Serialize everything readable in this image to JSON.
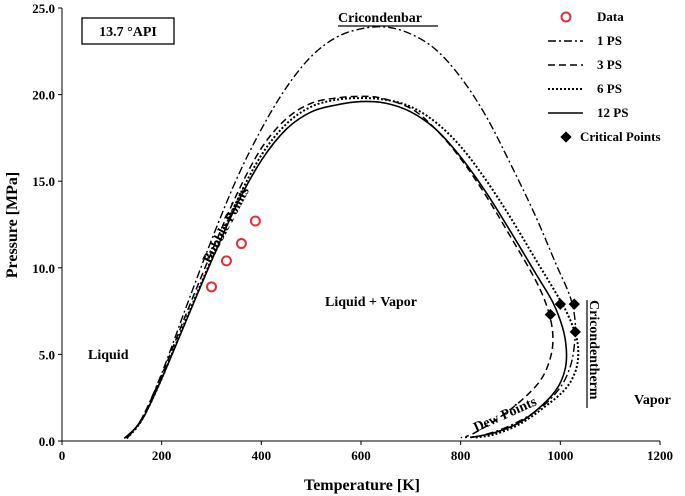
{
  "chart_data": {
    "type": "line",
    "api_label": "13.7 °API",
    "xlabel": "Temperature [K]",
    "ylabel": "Pressure [MPa]",
    "xlim": [
      0,
      1200
    ],
    "ylim": [
      0,
      25
    ],
    "x_ticks": [
      "0",
      "200",
      "400",
      "600",
      "800",
      "1000",
      "1200"
    ],
    "y_ticks": [
      "0.0",
      "5.0",
      "10.0",
      "15.0",
      "20.0",
      "25.0"
    ],
    "grid": false,
    "legend_position": "top-right",
    "region_labels": {
      "liquid": "Liquid",
      "two_phase": "Liquid + Vapor",
      "vapor": "Vapor"
    },
    "annotations": {
      "bubble": "Bubble Points",
      "dew": "Dew Points",
      "cricondenbar": "Cricondenbar",
      "cricondentherm": "Cricondentherm"
    },
    "series": [
      {
        "name": "Data",
        "style": "marker-circle",
        "color": "#e0303a",
        "points": [
          [
            300,
            8.9
          ],
          [
            330,
            10.4
          ],
          [
            360,
            11.4
          ],
          [
            388,
            12.7
          ]
        ]
      },
      {
        "name": "1 PS",
        "style": "dashdot",
        "color": "#000000",
        "points": [
          [
            130,
            0.15
          ],
          [
            160,
            1.3
          ],
          [
            200,
            3.9
          ],
          [
            250,
            7.8
          ],
          [
            300,
            11.6
          ],
          [
            350,
            15.1
          ],
          [
            400,
            18.0
          ],
          [
            450,
            20.4
          ],
          [
            500,
            22.2
          ],
          [
            550,
            23.3
          ],
          [
            600,
            23.8
          ],
          [
            650,
            23.9
          ],
          [
            700,
            23.5
          ],
          [
            750,
            22.6
          ],
          [
            800,
            21.0
          ],
          [
            850,
            18.8
          ],
          [
            900,
            16.0
          ],
          [
            950,
            13.0
          ],
          [
            990,
            10.3
          ],
          [
            1020,
            8.3
          ],
          [
            1030,
            6.8
          ],
          [
            1028,
            5.5
          ],
          [
            1020,
            4.3
          ],
          [
            1000,
            3.1
          ],
          [
            960,
            1.9
          ],
          [
            900,
            0.9
          ],
          [
            840,
            0.3
          ],
          [
            800,
            0.2
          ]
        ]
      },
      {
        "name": "3 PS",
        "style": "dashed",
        "color": "#000000",
        "points": [
          [
            130,
            0.15
          ],
          [
            160,
            1.3
          ],
          [
            200,
            3.8
          ],
          [
            250,
            7.4
          ],
          [
            300,
            10.9
          ],
          [
            350,
            14.2
          ],
          [
            400,
            16.9
          ],
          [
            450,
            18.6
          ],
          [
            500,
            19.5
          ],
          [
            550,
            19.8
          ],
          [
            600,
            19.9
          ],
          [
            640,
            19.8
          ],
          [
            700,
            19.2
          ],
          [
            750,
            18.0
          ],
          [
            800,
            16.3
          ],
          [
            850,
            14.2
          ],
          [
            900,
            11.8
          ],
          [
            950,
            9.3
          ],
          [
            975,
            7.6
          ],
          [
            985,
            6.1
          ],
          [
            980,
            4.8
          ],
          [
            960,
            3.5
          ],
          [
            920,
            2.3
          ],
          [
            870,
            1.2
          ],
          [
            830,
            0.5
          ],
          [
            810,
            0.25
          ]
        ]
      },
      {
        "name": "6 PS",
        "style": "dotted",
        "color": "#000000",
        "points": [
          [
            130,
            0.15
          ],
          [
            160,
            1.2
          ],
          [
            200,
            3.6
          ],
          [
            250,
            7.1
          ],
          [
            300,
            10.5
          ],
          [
            350,
            13.8
          ],
          [
            400,
            16.5
          ],
          [
            450,
            18.3
          ],
          [
            500,
            19.3
          ],
          [
            550,
            19.7
          ],
          [
            600,
            19.8
          ],
          [
            650,
            19.7
          ],
          [
            700,
            19.3
          ],
          [
            750,
            18.4
          ],
          [
            800,
            17.0
          ],
          [
            850,
            15.1
          ],
          [
            900,
            12.9
          ],
          [
            950,
            10.5
          ],
          [
            990,
            8.6
          ],
          [
            1015,
            7.3
          ],
          [
            1032,
            6.0
          ],
          [
            1036,
            5.0
          ],
          [
            1030,
            4.0
          ],
          [
            1010,
            3.0
          ],
          [
            970,
            2.0
          ],
          [
            920,
            1.0
          ],
          [
            870,
            0.4
          ],
          [
            830,
            0.2
          ]
        ]
      },
      {
        "name": "12 PS",
        "style": "solid",
        "color": "#000000",
        "points": [
          [
            125,
            0.15
          ],
          [
            160,
            1.2
          ],
          [
            200,
            3.6
          ],
          [
            250,
            7.0
          ],
          [
            300,
            10.4
          ],
          [
            350,
            13.6
          ],
          [
            400,
            16.2
          ],
          [
            450,
            18.0
          ],
          [
            500,
            19.0
          ],
          [
            550,
            19.4
          ],
          [
            600,
            19.6
          ],
          [
            650,
            19.5
          ],
          [
            700,
            19.0
          ],
          [
            750,
            18.0
          ],
          [
            800,
            16.4
          ],
          [
            850,
            14.4
          ],
          [
            900,
            12.1
          ],
          [
            950,
            9.7
          ],
          [
            985,
            8.0
          ],
          [
            1005,
            6.5
          ],
          [
            1012,
            5.3
          ],
          [
            1010,
            4.2
          ],
          [
            995,
            3.1
          ],
          [
            965,
            2.1
          ],
          [
            920,
            1.1
          ],
          [
            870,
            0.5
          ],
          [
            820,
            0.2
          ]
        ]
      },
      {
        "name": "Critical Points",
        "style": "marker-diamond",
        "color": "#000000",
        "points": [
          [
            980,
            7.3
          ],
          [
            1000,
            7.9
          ],
          [
            1028,
            7.9
          ],
          [
            1030,
            6.3
          ]
        ]
      }
    ]
  }
}
